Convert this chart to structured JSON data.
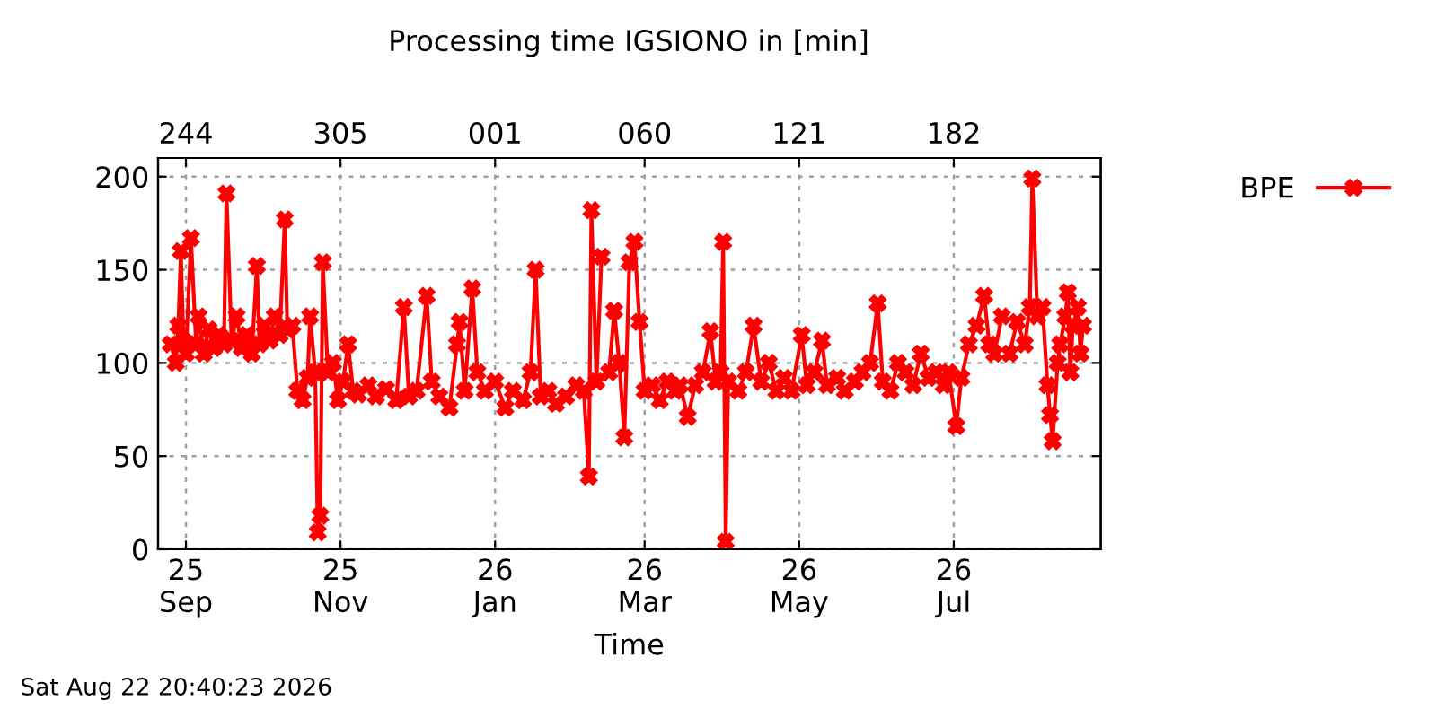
{
  "chart_data": {
    "type": "line",
    "title": "Processing time IGSIONO in [min]",
    "xlabel": "Time",
    "annotations": [
      "Sat Aug 22 20:40:23 2026"
    ],
    "xlim": [
      "2025-08-21",
      "2026-08-28"
    ],
    "xticks": [
      {
        "value": "2025-09-01",
        "label": "25\nSep"
      },
      {
        "value": "2025-11-01",
        "label": "25\nNov"
      },
      {
        "value": "2026-01-01",
        "label": "26\nJan"
      },
      {
        "value": "2026-03-01",
        "label": "26\nMar"
      },
      {
        "value": "2026-05-01",
        "label": "26\nMay"
      },
      {
        "value": "2026-07-01",
        "label": "26\nJul"
      }
    ],
    "x2lim": [
      "2025-08-21",
      "2026-08-28"
    ],
    "x2ticks": [
      {
        "value": "2025-09-01",
        "label": "244"
      },
      {
        "value": "2025-11-01",
        "label": "305"
      },
      {
        "value": "2026-01-01",
        "label": "001"
      },
      {
        "value": "2026-03-01",
        "label": "060"
      },
      {
        "value": "2026-05-01",
        "label": "121"
      },
      {
        "value": "2026-07-01",
        "label": "182"
      }
    ],
    "ylim": [
      0,
      210
    ],
    "yticks": [
      0,
      50,
      100,
      150,
      200
    ],
    "grid": true,
    "legend": "top right",
    "marker": "cross",
    "line_style": "solid",
    "x": [
      "2025-08-26",
      "2025-08-28",
      "2025-08-29",
      "2025-08-30",
      "2025-08-31",
      "2025-09-01",
      "2025-09-03",
      "2025-09-05",
      "2025-09-06",
      "2025-09-08",
      "2025-09-10",
      "2025-09-12",
      "2025-09-14",
      "2025-09-16",
      "2025-09-17",
      "2025-09-19",
      "2025-09-21",
      "2025-09-23",
      "2025-09-25",
      "2025-09-27",
      "2025-09-29",
      "2025-09-30",
      "2025-10-02",
      "2025-10-04",
      "2025-10-06",
      "2025-10-08",
      "2025-10-10",
      "2025-10-11",
      "2025-10-13",
      "2025-10-15",
      "2025-10-17",
      "2025-10-19",
      "2025-10-20",
      "2025-10-22",
      "2025-10-23",
      "2025-10-24",
      "2025-10-25",
      "2025-10-27",
      "2025-10-29",
      "2025-10-31",
      "2025-11-02",
      "2025-11-04",
      "2025-11-06",
      "2025-11-08",
      "2025-11-12",
      "2025-11-15",
      "2025-11-19",
      "2025-11-23",
      "2025-11-26",
      "2025-11-28",
      "2025-12-01",
      "2025-12-05",
      "2025-12-07",
      "2025-12-10",
      "2025-12-14",
      "2025-12-17",
      "2025-12-18",
      "2025-12-20",
      "2025-12-23",
      "2025-12-25",
      "2025-12-28",
      "2026-01-01",
      "2026-01-05",
      "2026-01-08",
      "2026-01-12",
      "2026-01-15",
      "2026-01-17",
      "2026-01-19",
      "2026-01-22",
      "2026-01-25",
      "2026-01-29",
      "2026-02-02",
      "2026-02-05",
      "2026-02-07",
      "2026-02-08",
      "2026-02-10",
      "2026-02-12",
      "2026-02-13",
      "2026-02-15",
      "2026-02-17",
      "2026-02-19",
      "2026-02-21",
      "2026-02-23",
      "2026-02-25",
      "2026-02-27",
      "2026-03-01",
      "2026-03-04",
      "2026-03-07",
      "2026-03-10",
      "2026-03-13",
      "2026-03-15",
      "2026-03-18",
      "2026-03-21",
      "2026-03-24",
      "2026-03-27",
      "2026-03-29",
      "2026-03-31",
      "2026-04-01",
      "2026-04-02",
      "2026-04-03",
      "2026-04-07",
      "2026-04-10",
      "2026-04-13",
      "2026-04-16",
      "2026-04-19",
      "2026-04-22",
      "2026-04-25",
      "2026-04-28",
      "2026-05-02",
      "2026-05-04",
      "2026-05-07",
      "2026-05-10",
      "2026-05-12",
      "2026-05-16",
      "2026-05-19",
      "2026-05-23",
      "2026-05-26",
      "2026-05-29",
      "2026-06-01",
      "2026-06-03",
      "2026-06-06",
      "2026-06-09",
      "2026-06-12",
      "2026-06-15",
      "2026-06-18",
      "2026-06-21",
      "2026-06-24",
      "2026-06-27",
      "2026-06-29",
      "2026-07-02",
      "2026-07-04",
      "2026-07-07",
      "2026-07-10",
      "2026-07-13",
      "2026-07-15",
      "2026-07-17",
      "2026-07-20",
      "2026-07-22",
      "2026-07-23",
      "2026-07-26",
      "2026-07-29",
      "2026-07-31",
      "2026-08-01",
      "2026-08-03",
      "2026-08-05",
      "2026-08-07",
      "2026-08-08",
      "2026-08-09",
      "2026-08-11",
      "2026-08-12",
      "2026-08-14",
      "2026-08-15",
      "2026-08-16",
      "2026-08-17",
      "2026-08-19",
      "2026-08-20",
      "2026-08-21"
    ],
    "series": [
      {
        "name": "BPE",
        "color": "#ff0000",
        "values": [
          110,
          100,
          120,
          160,
          112,
          105,
          167,
          110,
          125,
          105,
          118,
          108,
          115,
          110,
          191,
          112,
          125,
          108,
          115,
          105,
          152,
          110,
          120,
          112,
          125,
          115,
          177,
          118,
          120,
          85,
          80,
          92,
          125,
          95,
          9,
          18,
          154,
          95,
          100,
          80,
          90,
          110,
          85,
          83,
          88,
          82,
          86,
          80,
          130,
          82,
          85,
          136,
          90,
          82,
          76,
          110,
          122,
          85,
          140,
          95,
          85,
          90,
          76,
          85,
          80,
          95,
          150,
          82,
          85,
          78,
          82,
          88,
          85,
          39,
          182,
          90,
          157,
          null,
          95,
          128,
          100,
          60,
          154,
          165,
          122,
          85,
          88,
          80,
          90,
          85,
          88,
          71,
          88,
          95,
          117,
          90,
          95,
          165,
          4,
          90,
          85,
          95,
          120,
          90,
          100,
          85,
          92,
          85,
          115,
          88,
          95,
          112,
          88,
          92,
          85,
          90,
          95,
          100,
          132,
          90,
          85,
          100,
          95,
          88,
          105,
          92,
          95,
          88,
          95,
          66,
          92,
          110,
          120,
          136,
          110,
          105,
          125,
          null,
          105,
          122,
          110,
          130,
          199,
          125,
          130,
          88,
          72,
          58,
          100,
          110,
          125,
          138,
          95,
          120,
          130,
          105,
          120
        ]
      }
    ]
  }
}
